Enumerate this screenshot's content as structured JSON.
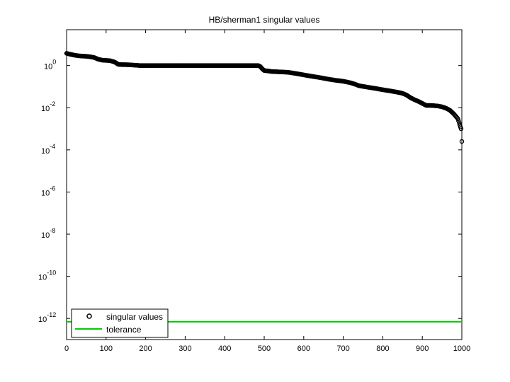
{
  "chart_data": {
    "type": "scatter",
    "title": "HB/sherman1 singular values",
    "xlabel": "",
    "ylabel": "",
    "xlim": [
      0,
      1000
    ],
    "ylim_exponent": [
      -13,
      1.7
    ],
    "yscale": "log",
    "x_ticks": [
      "0",
      "100",
      "200",
      "300",
      "400",
      "500",
      "600",
      "700",
      "800",
      "900",
      "1000"
    ],
    "y_ticks": [
      {
        "base": "10",
        "exp": "-12"
      },
      {
        "base": "10",
        "exp": "-10"
      },
      {
        "base": "10",
        "exp": "-8"
      },
      {
        "base": "10",
        "exp": "-6"
      },
      {
        "base": "10",
        "exp": "-4"
      },
      {
        "base": "10",
        "exp": "-2"
      },
      {
        "base": "10",
        "exp": "0"
      }
    ],
    "grid": false,
    "legend_position": "bottom-left",
    "series": [
      {
        "name": "singular values",
        "marker": "circle",
        "color": "#000000",
        "points": [
          [
            0,
            3.8
          ],
          [
            10,
            3.4
          ],
          [
            20,
            3.1
          ],
          [
            30,
            2.9
          ],
          [
            40,
            2.8
          ],
          [
            50,
            2.75
          ],
          [
            60,
            2.6
          ],
          [
            70,
            2.4
          ],
          [
            80,
            2.0
          ],
          [
            90,
            1.8
          ],
          [
            100,
            1.75
          ],
          [
            110,
            1.7
          ],
          [
            120,
            1.5
          ],
          [
            125,
            1.35
          ],
          [
            130,
            1.15
          ],
          [
            140,
            1.1
          ],
          [
            150,
            1.1
          ],
          [
            160,
            1.08
          ],
          [
            170,
            1.05
          ],
          [
            180,
            1.02
          ],
          [
            185,
            1.0
          ],
          [
            200,
            1.0
          ],
          [
            250,
            1.0
          ],
          [
            300,
            1.0
          ],
          [
            350,
            1.0
          ],
          [
            400,
            1.0
          ],
          [
            450,
            1.0
          ],
          [
            485,
            1.0
          ],
          [
            490,
            0.9
          ],
          [
            495,
            0.7
          ],
          [
            500,
            0.58
          ],
          [
            510,
            0.55
          ],
          [
            520,
            0.52
          ],
          [
            540,
            0.5
          ],
          [
            560,
            0.48
          ],
          [
            580,
            0.42
          ],
          [
            600,
            0.36
          ],
          [
            620,
            0.31
          ],
          [
            640,
            0.27
          ],
          [
            660,
            0.23
          ],
          [
            680,
            0.2
          ],
          [
            700,
            0.18
          ],
          [
            720,
            0.15
          ],
          [
            730,
            0.13
          ],
          [
            740,
            0.11
          ],
          [
            760,
            0.095
          ],
          [
            780,
            0.083
          ],
          [
            800,
            0.071
          ],
          [
            820,
            0.062
          ],
          [
            840,
            0.053
          ],
          [
            850,
            0.048
          ],
          [
            860,
            0.04
          ],
          [
            870,
            0.03
          ],
          [
            880,
            0.024
          ],
          [
            890,
            0.02
          ],
          [
            900,
            0.016
          ],
          [
            910,
            0.0128
          ],
          [
            920,
            0.0128
          ],
          [
            930,
            0.0125
          ],
          [
            940,
            0.012
          ],
          [
            950,
            0.011
          ],
          [
            960,
            0.0095
          ],
          [
            970,
            0.0075
          ],
          [
            980,
            0.005
          ],
          [
            990,
            0.003
          ],
          [
            995,
            0.0015
          ],
          [
            998,
            0.001
          ],
          [
            1000,
            0.00025
          ]
        ]
      },
      {
        "name": "tolerance",
        "color": "#00cc00",
        "value": 7e-13
      }
    ]
  }
}
